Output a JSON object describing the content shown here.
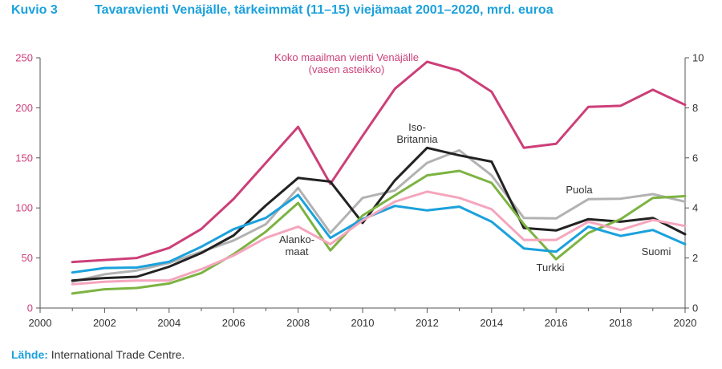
{
  "figure": {
    "number": "Kuvio 3",
    "title": "Tavaravienti Venäjälle, tärkeimmät (11–15) viejämaat 2001–2020, mrd. euroa",
    "source_label": "Lähde:",
    "source_text": " International Trade Centre."
  },
  "chart_data": {
    "type": "line",
    "x": [
      2001,
      2002,
      2003,
      2004,
      2005,
      2006,
      2007,
      2008,
      2009,
      2010,
      2011,
      2012,
      2013,
      2014,
      2015,
      2016,
      2017,
      2018,
      2019,
      2020
    ],
    "x_axis": {
      "min": 2000,
      "max": 2020,
      "ticks": [
        2000,
        2002,
        2004,
        2006,
        2008,
        2010,
        2012,
        2014,
        2016,
        2018,
        2020
      ]
    },
    "y_left": {
      "min": 0,
      "max": 250,
      "ticks": [
        0,
        50,
        100,
        150,
        200,
        250
      ]
    },
    "y_right": {
      "min": 0,
      "max": 10,
      "ticks": [
        0,
        2,
        4,
        6,
        8,
        10
      ]
    },
    "grid": false,
    "series": [
      {
        "key": "world",
        "axis": "left",
        "color": "#cc3f78",
        "values": [
          46,
          48,
          50,
          60,
          79,
          109,
          145,
          181,
          124,
          172,
          219,
          246,
          237,
          216,
          160,
          164,
          201,
          202,
          218,
          203
        ]
      },
      {
        "key": "poland",
        "axis": "right",
        "color": "#b2b2b2",
        "values": [
          1.05,
          1.35,
          1.5,
          1.8,
          2.25,
          2.7,
          3.35,
          4.8,
          3.0,
          4.4,
          4.7,
          5.8,
          6.3,
          5.3,
          3.6,
          3.58,
          4.35,
          4.37,
          4.55,
          4.25
        ]
      },
      {
        "key": "uk",
        "axis": "right",
        "color": "#222222",
        "values": [
          1.1,
          1.2,
          1.25,
          1.65,
          2.2,
          2.9,
          4.1,
          5.2,
          5.05,
          3.4,
          5.1,
          6.4,
          6.1,
          5.85,
          3.2,
          3.1,
          3.55,
          3.45,
          3.6,
          2.95
        ]
      },
      {
        "key": "turkey",
        "axis": "right",
        "color": "#7cb342",
        "values": [
          0.58,
          0.75,
          0.8,
          0.98,
          1.4,
          2.15,
          3.05,
          4.2,
          2.3,
          3.7,
          4.5,
          5.3,
          5.48,
          5.0,
          3.35,
          1.95,
          3.0,
          3.55,
          4.4,
          4.47
        ]
      },
      {
        "key": "finland",
        "axis": "right",
        "color": "#1ba1dc",
        "values": [
          1.42,
          1.6,
          1.62,
          1.85,
          2.45,
          3.15,
          3.6,
          4.52,
          2.8,
          3.55,
          4.08,
          3.9,
          4.05,
          3.45,
          2.38,
          2.25,
          3.25,
          2.88,
          3.12,
          2.55
        ]
      },
      {
        "key": "netherlands",
        "axis": "right",
        "color": "#f4a6bd",
        "values": [
          0.95,
          1.05,
          1.1,
          1.1,
          1.55,
          2.1,
          2.8,
          3.25,
          2.55,
          3.5,
          4.25,
          4.65,
          4.4,
          3.95,
          2.72,
          2.72,
          3.45,
          3.12,
          3.52,
          3.28
        ]
      }
    ],
    "annotations": {
      "world_line1": "Koko maailman vienti Venäjälle",
      "world_line2": "(vasen asteikko)",
      "uk_line1": "Iso-",
      "uk_line2": "Britannia",
      "poland": "Puola",
      "finland": "Suomi",
      "turkey": "Turkki",
      "netherlands_line1": "Alanko-",
      "netherlands_line2": "maat"
    }
  }
}
